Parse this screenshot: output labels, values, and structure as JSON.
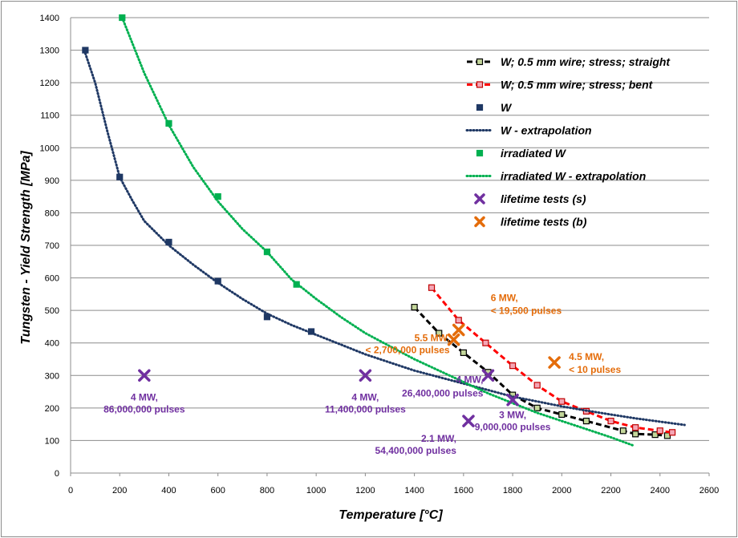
{
  "chart_data": {
    "type": "scatter",
    "xlabel": "Temperature [°C]",
    "ylabel": "Tungsten - Yield Strength [MPa]",
    "xlim": [
      0,
      2600
    ],
    "ylim": [
      0,
      1400
    ],
    "x_ticks": [
      0,
      200,
      400,
      600,
      800,
      1000,
      1200,
      1400,
      1600,
      1800,
      2000,
      2200,
      2400,
      2600
    ],
    "y_ticks": [
      0,
      100,
      200,
      300,
      400,
      500,
      600,
      700,
      800,
      900,
      1000,
      1100,
      1200,
      1300,
      1400
    ],
    "grid": true,
    "legend_position": "right",
    "colors": {
      "straight": "#000000",
      "bent": "#ff0000",
      "w": "#1f3864",
      "irradiated": "#00b050",
      "lifetime_s": "#7030a0",
      "lifetime_b": "#e46c0a",
      "marker_straight": "#c4d79b",
      "marker_bent": "#f4a6b5"
    },
    "series": [
      {
        "key": "straight",
        "name": "W; 0.5 mm wire; stress; straight",
        "style": "dashed-line-markers",
        "points": [
          [
            1400,
            510
          ],
          [
            1500,
            430
          ],
          [
            1600,
            370
          ],
          [
            1700,
            310
          ],
          [
            1800,
            240
          ],
          [
            1900,
            200
          ],
          [
            2000,
            180
          ],
          [
            2100,
            160
          ],
          [
            2250,
            130
          ],
          [
            2300,
            120
          ],
          [
            2380,
            118
          ],
          [
            2430,
            115
          ]
        ]
      },
      {
        "key": "bent",
        "name": "W; 0.5 mm wire; stress; bent",
        "style": "dashed-line-markers",
        "points": [
          [
            1470,
            570
          ],
          [
            1580,
            470
          ],
          [
            1690,
            400
          ],
          [
            1800,
            330
          ],
          [
            1900,
            270
          ],
          [
            2000,
            220
          ],
          [
            2100,
            190
          ],
          [
            2200,
            160
          ],
          [
            2300,
            140
          ],
          [
            2400,
            130
          ],
          [
            2450,
            125
          ]
        ]
      },
      {
        "key": "w",
        "name": "W",
        "style": "markers",
        "points": [
          [
            60,
            1300
          ],
          [
            200,
            910
          ],
          [
            400,
            710
          ],
          [
            600,
            590
          ],
          [
            800,
            480
          ],
          [
            980,
            435
          ]
        ]
      },
      {
        "key": "w_ext",
        "name": "W - extrapolation",
        "style": "dotted",
        "points": [
          [
            60,
            1290
          ],
          [
            100,
            1200
          ],
          [
            150,
            1050
          ],
          [
            200,
            910
          ],
          [
            250,
            840
          ],
          [
            300,
            775
          ],
          [
            400,
            700
          ],
          [
            500,
            640
          ],
          [
            600,
            585
          ],
          [
            700,
            535
          ],
          [
            800,
            490
          ],
          [
            900,
            455
          ],
          [
            1000,
            425
          ],
          [
            1100,
            395
          ],
          [
            1200,
            365
          ],
          [
            1300,
            340
          ],
          [
            1400,
            315
          ],
          [
            1500,
            295
          ],
          [
            1600,
            275
          ],
          [
            1700,
            255
          ],
          [
            1800,
            235
          ],
          [
            1900,
            220
          ],
          [
            2000,
            205
          ],
          [
            2100,
            192
          ],
          [
            2200,
            180
          ],
          [
            2300,
            168
          ],
          [
            2400,
            158
          ],
          [
            2500,
            148
          ]
        ]
      },
      {
        "key": "irr",
        "name": "irradiated W",
        "style": "markers",
        "points": [
          [
            210,
            1400
          ],
          [
            400,
            1075
          ],
          [
            600,
            850
          ],
          [
            800,
            680
          ],
          [
            920,
            580
          ]
        ]
      },
      {
        "key": "irr_ext",
        "name": "irradiated W - extrapolation",
        "style": "dotted",
        "points": [
          [
            210,
            1400
          ],
          [
            300,
            1230
          ],
          [
            400,
            1070
          ],
          [
            500,
            940
          ],
          [
            600,
            835
          ],
          [
            700,
            750
          ],
          [
            800,
            680
          ],
          [
            900,
            595
          ],
          [
            1000,
            535
          ],
          [
            1100,
            480
          ],
          [
            1200,
            430
          ],
          [
            1300,
            390
          ],
          [
            1400,
            350
          ],
          [
            1500,
            315
          ],
          [
            1600,
            280
          ],
          [
            1700,
            245
          ],
          [
            1800,
            215
          ],
          [
            1900,
            185
          ],
          [
            2000,
            160
          ],
          [
            2100,
            135
          ],
          [
            2200,
            110
          ],
          [
            2290,
            85
          ]
        ]
      },
      {
        "key": "lifetime_s",
        "name": "lifetime tests (s)",
        "style": "x-markers",
        "points": [
          [
            300,
            300
          ],
          [
            1200,
            300
          ],
          [
            1700,
            300
          ],
          [
            1800,
            225
          ],
          [
            1620,
            160
          ]
        ]
      },
      {
        "key": "lifetime_b",
        "name": "lifetime tests (b)",
        "style": "x-markers",
        "points": [
          [
            1560,
            410
          ],
          [
            1580,
            440
          ],
          [
            1970,
            340
          ]
        ]
      }
    ],
    "annotations": [
      {
        "lines": [
          "4 MW,",
          "86,000,000 pulses"
        ],
        "color_key": "lifetime_s",
        "x": 300,
        "y": 300,
        "dy": [
          31,
          46
        ],
        "anchor": "middle"
      },
      {
        "lines": [
          "4 MW,",
          "11,400,000 pulses"
        ],
        "color_key": "lifetime_s",
        "x": 1200,
        "y": 300,
        "dy": [
          31,
          46
        ],
        "anchor": "middle"
      },
      {
        "lines": [
          "4 MW,",
          "26,400,000 pulses"
        ],
        "color_key": "lifetime_s",
        "x": 1700,
        "y": 300,
        "dy": [
          9,
          26
        ],
        "anchor": "end",
        "dx": -6
      },
      {
        "lines": [
          "3 MW,",
          "9,000,000 pulses"
        ],
        "color_key": "lifetime_s",
        "x": 1800,
        "y": 225,
        "dy": [
          23,
          38
        ],
        "anchor": "middle"
      },
      {
        "lines": [
          "2.1 MW,",
          "54,400,000 pulses"
        ],
        "color_key": "lifetime_s",
        "x": 1620,
        "y": 160,
        "dy": [
          26,
          41
        ],
        "anchor": "end",
        "dx": -15
      },
      {
        "lines": [
          "5.5 MW,",
          "< 2,700,000 pulses"
        ],
        "color_key": "lifetime_b",
        "x": 1560,
        "y": 410,
        "dy": [
          2,
          17
        ],
        "anchor": "end",
        "dx": -5
      },
      {
        "lines": [
          "6 MW,",
          "< 19,500 pulses"
        ],
        "color_key": "lifetime_b",
        "x": 1580,
        "y": 440,
        "dy": [
          -36,
          -20
        ],
        "anchor": "start",
        "dx": 40
      },
      {
        "lines": [
          "4.5 MW,",
          "< 10 pulses"
        ],
        "color_key": "lifetime_b",
        "x": 1970,
        "y": 340,
        "dy": [
          -3,
          13
        ],
        "anchor": "start",
        "dx": 18
      }
    ]
  }
}
